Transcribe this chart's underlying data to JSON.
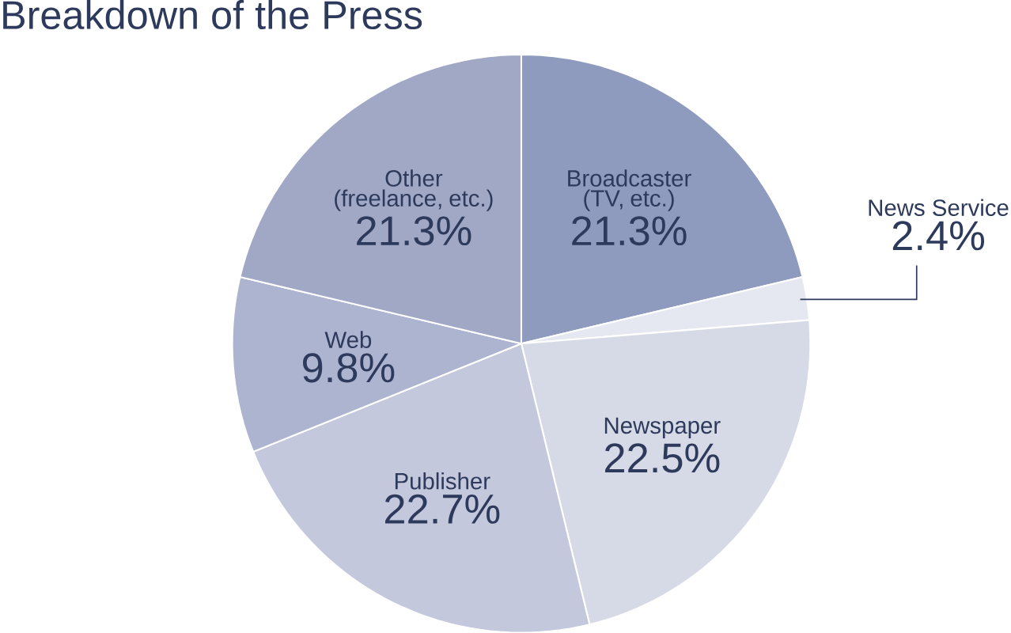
{
  "chart_data": {
    "type": "pie",
    "title": "Breakdown of the Press",
    "categories": [
      "Broadcaster (TV, etc.)",
      "News Service",
      "Newspaper",
      "Publisher",
      "Web",
      "Other (freelance, etc.)"
    ],
    "values": [
      21.3,
      2.4,
      22.5,
      22.7,
      9.8,
      21.3
    ],
    "value_labels": [
      "21.3%",
      "2.4%",
      "22.5%",
      "22.7%",
      "9.8%",
      "21.3%"
    ],
    "colors": [
      "#8e9bbf",
      "#e6e8f1",
      "#d6dae7",
      "#c3c8dc",
      "#adb4cf",
      "#a0a8c6"
    ]
  }
}
